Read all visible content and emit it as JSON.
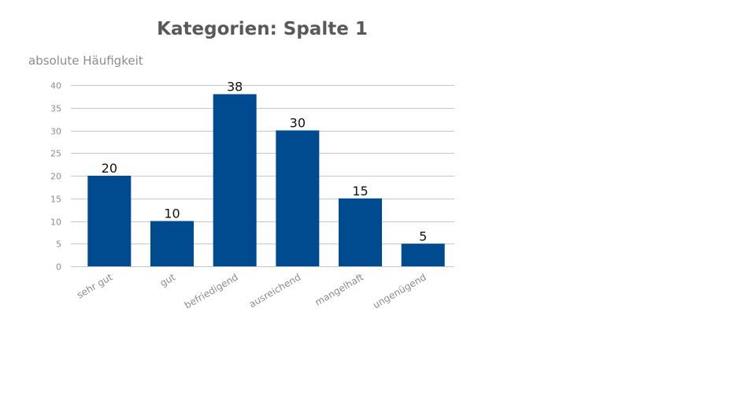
{
  "chart_data": {
    "type": "bar",
    "title": "Kategorien: Spalte 1",
    "ylabel": "absolute Häufigkeit",
    "xlabel": "",
    "categories": [
      "sehr gut",
      "gut",
      "befriedigend",
      "ausreichend",
      "mangelhaft",
      "ungenügend"
    ],
    "values": [
      20,
      10,
      38,
      30,
      15,
      5
    ],
    "ylim": [
      0,
      40
    ],
    "yticks": [
      0,
      5,
      10,
      15,
      20,
      25,
      30,
      35,
      40
    ],
    "grid": true,
    "legend": "none",
    "bar_color": "#004a8f"
  }
}
